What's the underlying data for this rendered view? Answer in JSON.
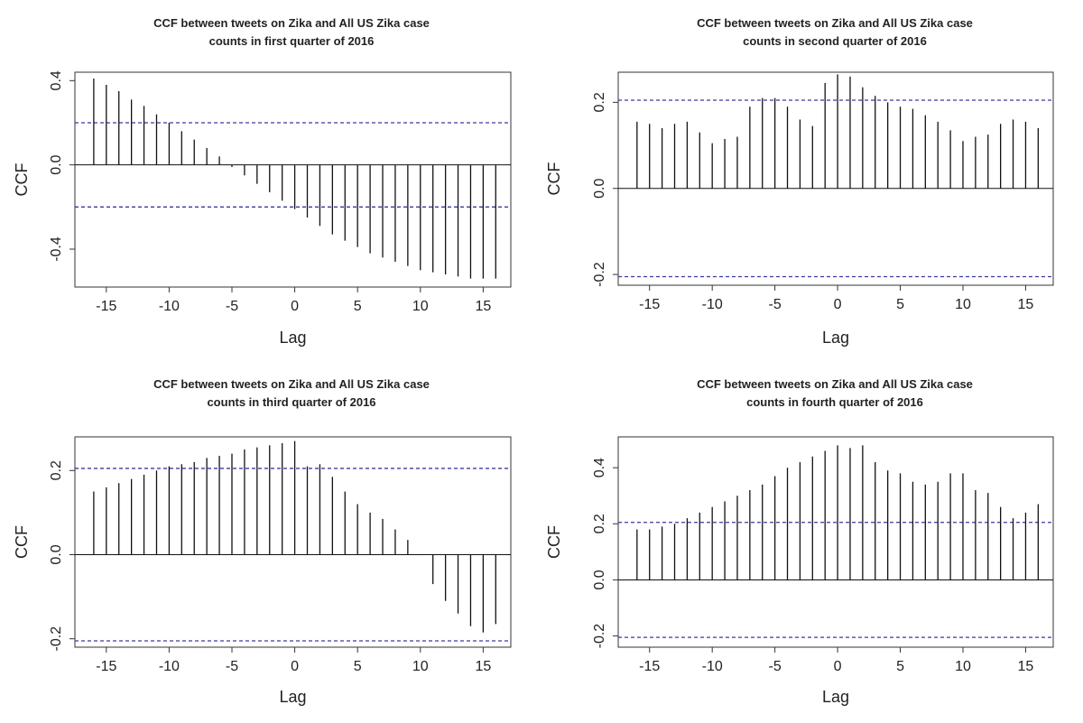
{
  "chart_data": [
    {
      "type": "bar",
      "title_line1": "CCF between tweets on Zika and All US Zika case",
      "title_line2": "counts in first quarter of 2016",
      "xlabel": "Lag",
      "ylabel": "CCF",
      "xlim": [
        -17.5,
        17.2
      ],
      "ylim": [
        -0.58,
        0.44
      ],
      "xticks": [
        -15,
        -10,
        -5,
        0,
        5,
        10,
        15
      ],
      "xtick_labels": [
        "-15",
        "-10",
        "-5",
        "0",
        "5",
        "10",
        "15"
      ],
      "yticks": [
        -0.4,
        0.0,
        0.4
      ],
      "ytick_labels": [
        "-0.4",
        "0.0",
        "0.4"
      ],
      "confidence_band": 0.2,
      "lags": [
        -16,
        -15,
        -14,
        -13,
        -12,
        -11,
        -10,
        -9,
        -8,
        -7,
        -6,
        -5,
        -4,
        -3,
        -2,
        -1,
        0,
        1,
        2,
        3,
        4,
        5,
        6,
        7,
        8,
        9,
        10,
        11,
        12,
        13,
        14,
        15,
        16
      ],
      "values": [
        0.41,
        0.38,
        0.35,
        0.31,
        0.28,
        0.24,
        0.2,
        0.16,
        0.12,
        0.08,
        0.04,
        -0.01,
        -0.05,
        -0.09,
        -0.13,
        -0.17,
        -0.21,
        -0.25,
        -0.29,
        -0.33,
        -0.36,
        -0.39,
        -0.42,
        -0.44,
        -0.46,
        -0.48,
        -0.5,
        -0.51,
        -0.52,
        -0.53,
        -0.54,
        -0.54,
        -0.54
      ]
    },
    {
      "type": "bar",
      "title_line1": "CCF between tweets on Zika and All US Zika case",
      "title_line2": "counts in second quarter of 2016",
      "xlabel": "Lag",
      "ylabel": "CCF",
      "xlim": [
        -17.5,
        17.2
      ],
      "ylim": [
        -0.225,
        0.27
      ],
      "xticks": [
        -15,
        -10,
        -5,
        0,
        5,
        10,
        15
      ],
      "xtick_labels": [
        "-15",
        "-10",
        "-5",
        "0",
        "5",
        "10",
        "15"
      ],
      "yticks": [
        -0.2,
        0.0,
        0.2
      ],
      "ytick_labels": [
        "-0.2",
        "0.0",
        "0.2"
      ],
      "confidence_band": 0.205,
      "lags": [
        -16,
        -15,
        -14,
        -13,
        -12,
        -11,
        -10,
        -9,
        -8,
        -7,
        -6,
        -5,
        -4,
        -3,
        -2,
        -1,
        0,
        1,
        2,
        3,
        4,
        5,
        6,
        7,
        8,
        9,
        10,
        11,
        12,
        13,
        14,
        15,
        16
      ],
      "values": [
        0.155,
        0.15,
        0.14,
        0.15,
        0.155,
        0.13,
        0.105,
        0.115,
        0.12,
        0.19,
        0.21,
        0.21,
        0.19,
        0.16,
        0.145,
        0.245,
        0.265,
        0.26,
        0.235,
        0.215,
        0.2,
        0.19,
        0.185,
        0.17,
        0.155,
        0.135,
        0.11,
        0.12,
        0.125,
        0.15,
        0.16,
        0.155,
        0.14
      ]
    },
    {
      "type": "bar",
      "title_line1": "CCF between tweets on Zika and All US Zika case",
      "title_line2": "counts in third quarter of 2016",
      "xlabel": "Lag",
      "ylabel": "CCF",
      "xlim": [
        -17.5,
        17.2
      ],
      "ylim": [
        -0.22,
        0.28
      ],
      "xticks": [
        -15,
        -10,
        -5,
        0,
        5,
        10,
        15
      ],
      "xtick_labels": [
        "-15",
        "-10",
        "-5",
        "0",
        "5",
        "10",
        "15"
      ],
      "yticks": [
        -0.2,
        0.0,
        0.2
      ],
      "ytick_labels": [
        "-0.2",
        "0.0",
        "0.2"
      ],
      "confidence_band": 0.205,
      "lags": [
        -16,
        -15,
        -14,
        -13,
        -12,
        -11,
        -10,
        -9,
        -8,
        -7,
        -6,
        -5,
        -4,
        -3,
        -2,
        -1,
        0,
        1,
        2,
        3,
        4,
        5,
        6,
        7,
        8,
        9,
        10,
        11,
        12,
        13,
        14,
        15,
        16
      ],
      "values": [
        0.15,
        0.16,
        0.17,
        0.18,
        0.19,
        0.2,
        0.21,
        0.215,
        0.22,
        0.23,
        0.235,
        0.24,
        0.25,
        0.255,
        0.26,
        0.265,
        0.27,
        0.21,
        0.215,
        0.185,
        0.15,
        0.12,
        0.1,
        0.085,
        0.06,
        0.035,
        0.0,
        -0.07,
        -0.11,
        -0.14,
        -0.17,
        -0.185,
        -0.165
      ]
    },
    {
      "type": "bar",
      "title_line1": "CCF between tweets on Zika and All US Zika case",
      "title_line2": "counts in fourth quarter of 2016",
      "xlabel": "Lag",
      "ylabel": "CCF",
      "xlim": [
        -17.5,
        17.2
      ],
      "ylim": [
        -0.24,
        0.51
      ],
      "xticks": [
        -15,
        -10,
        -5,
        0,
        5,
        10,
        15
      ],
      "xtick_labels": [
        "-15",
        "-10",
        "-5",
        "0",
        "5",
        "10",
        "15"
      ],
      "yticks": [
        -0.2,
        0.0,
        0.2,
        0.4
      ],
      "ytick_labels": [
        "-0.2",
        "0.0",
        "0.2",
        "0.4"
      ],
      "confidence_band": 0.205,
      "lags": [
        -16,
        -15,
        -14,
        -13,
        -12,
        -11,
        -10,
        -9,
        -8,
        -7,
        -6,
        -5,
        -4,
        -3,
        -2,
        -1,
        0,
        1,
        2,
        3,
        4,
        5,
        6,
        7,
        8,
        9,
        10,
        11,
        12,
        13,
        14,
        15,
        16
      ],
      "values": [
        0.18,
        0.18,
        0.19,
        0.2,
        0.22,
        0.24,
        0.26,
        0.28,
        0.3,
        0.32,
        0.34,
        0.37,
        0.4,
        0.42,
        0.44,
        0.46,
        0.48,
        0.47,
        0.48,
        0.42,
        0.39,
        0.38,
        0.35,
        0.34,
        0.35,
        0.38,
        0.38,
        0.32,
        0.31,
        0.26,
        0.22,
        0.24,
        0.27
      ]
    }
  ],
  "colors": {
    "bars": "#111111",
    "confidence_line": "#3a3aa0",
    "frame": "#333333",
    "text": "#222222"
  }
}
